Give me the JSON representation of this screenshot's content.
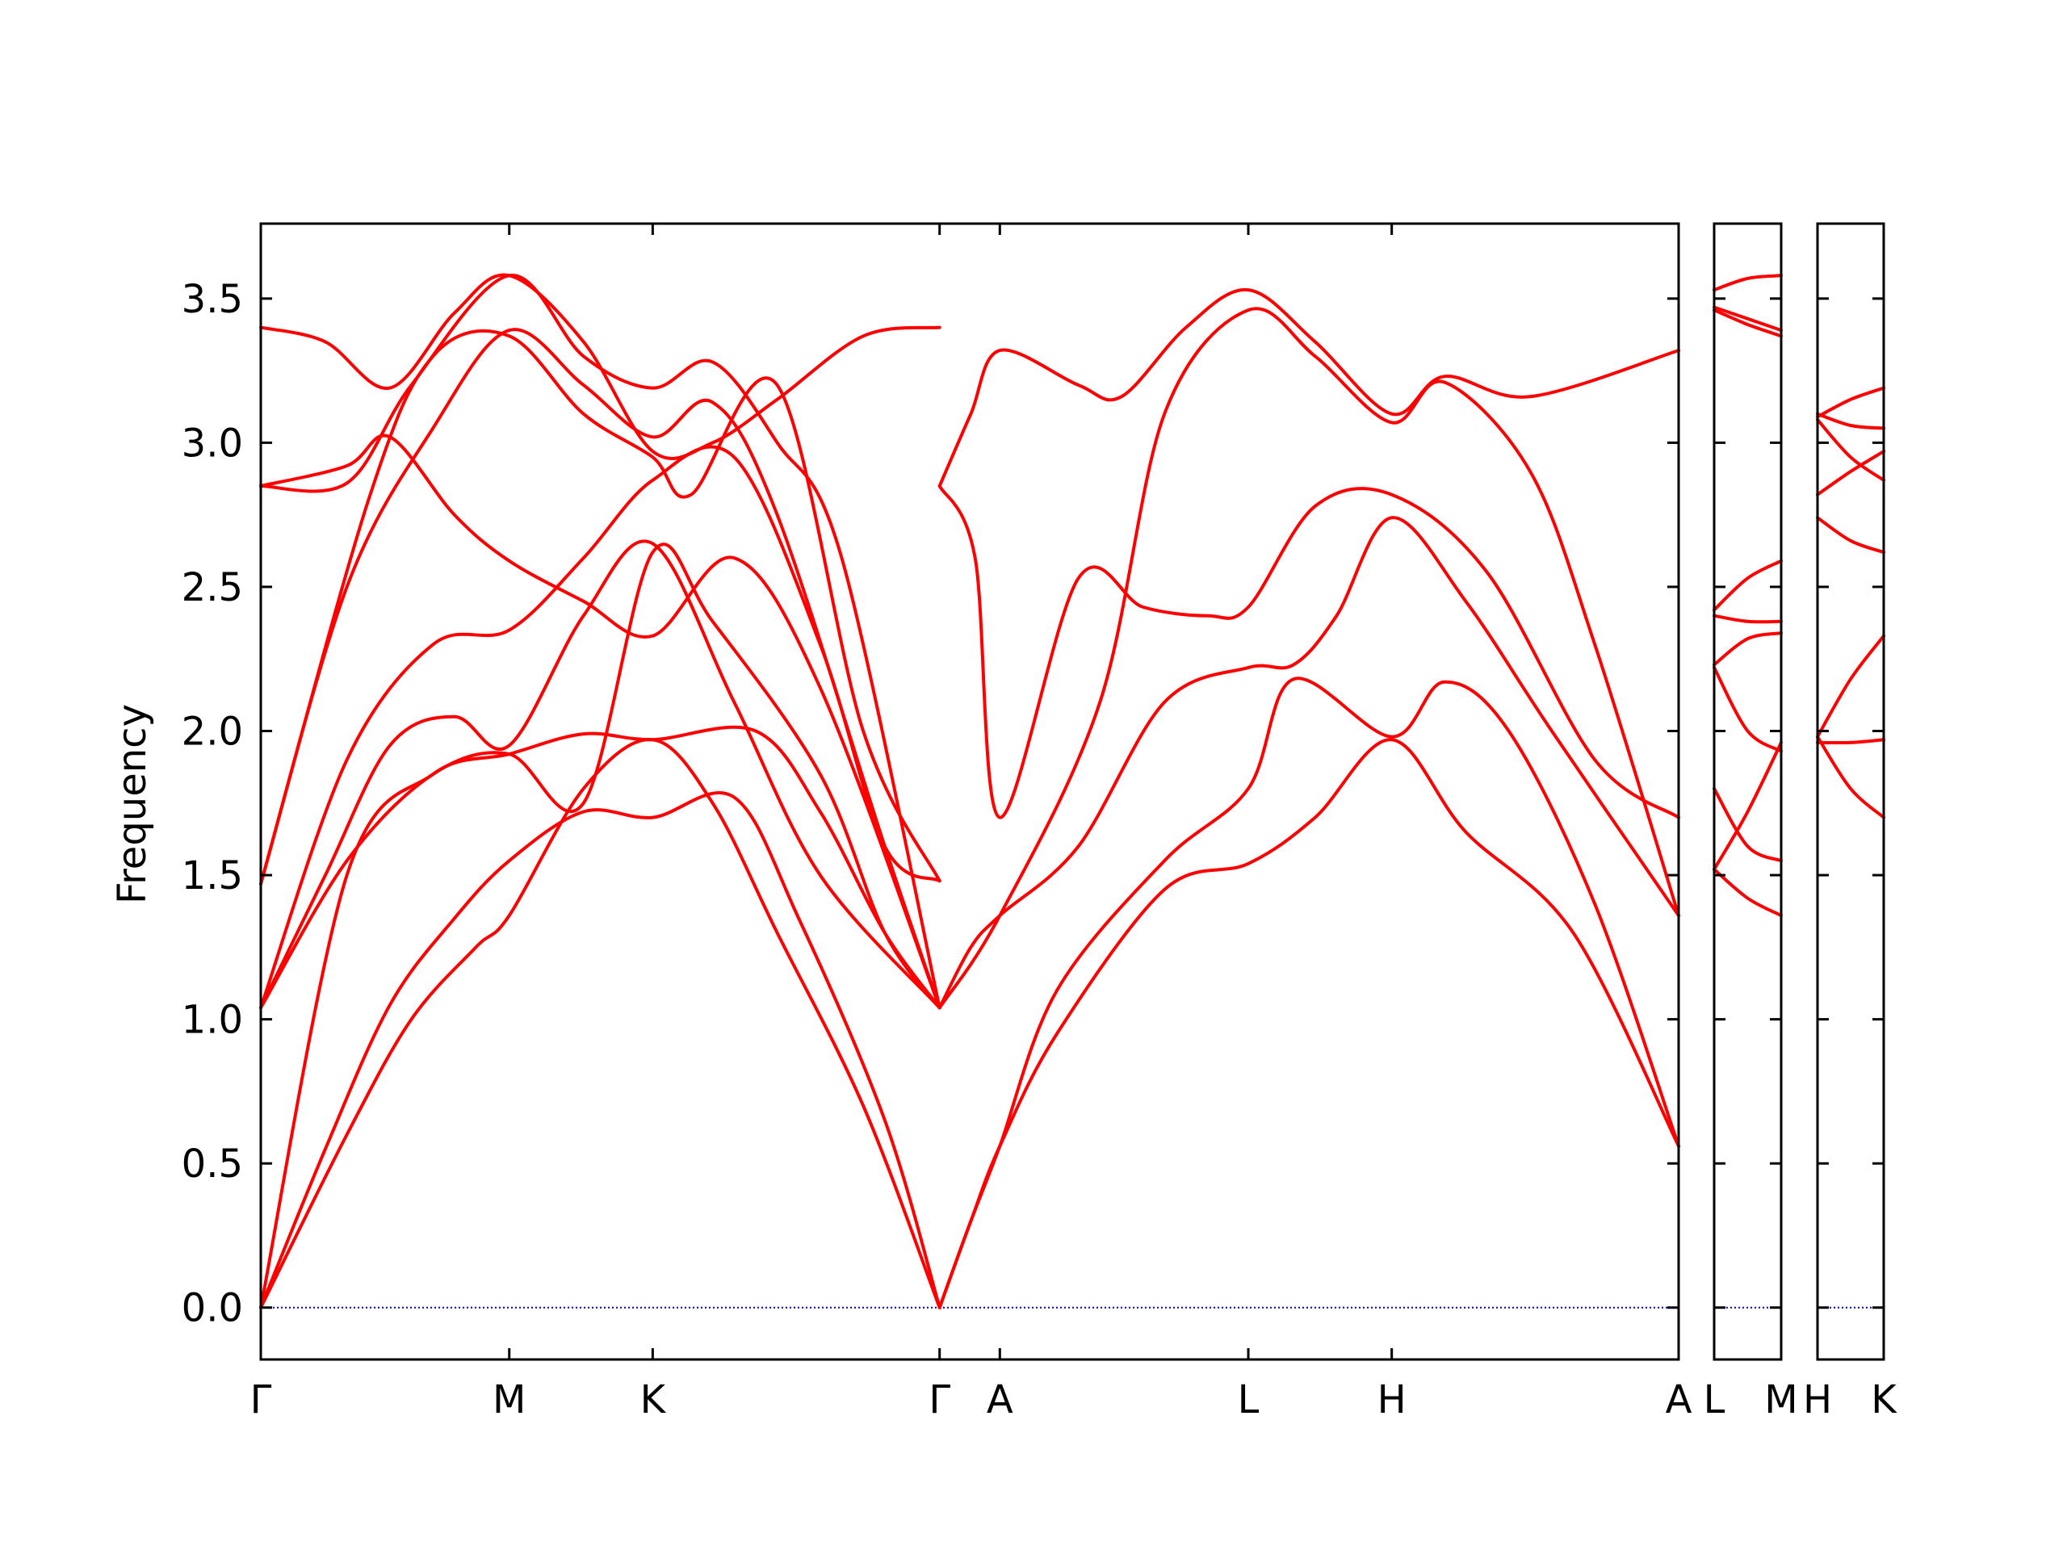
{
  "chart_data": {
    "type": "line",
    "title": "",
    "ylabel": "Frequency",
    "xlabel": "",
    "ylim": [
      -0.18,
      3.76
    ],
    "yticks": [
      0.0,
      0.5,
      1.0,
      1.5,
      2.0,
      2.5,
      3.0,
      3.5
    ],
    "ytick_labels": [
      "0.0",
      "0.5",
      "1.0",
      "1.5",
      "2.0",
      "2.5",
      "3.0",
      "3.5"
    ],
    "grid": false,
    "colors": {
      "band": "#ff0000",
      "zero": "#0000cc",
      "frame": "#000000"
    },
    "panels": [
      {
        "name": "main",
        "labels": [
          "Γ",
          "M",
          "K",
          "Γ",
          "A",
          "L",
          "H",
          "A"
        ],
        "positions": [
          0,
          0.5774,
          0.9107,
          1.5774,
          1.7174,
          2.2948,
          2.6281,
          3.2948
        ],
        "xlim": [
          0,
          3.2948
        ],
        "bands": [
          [
            [
              0,
              0
            ],
            [
              0.2,
              0.6
            ],
            [
              0.35,
              1.0
            ],
            [
              0.5,
              1.25
            ],
            [
              0.5774,
              1.36
            ],
            [
              0.75,
              1.8
            ],
            [
              0.9107,
              1.97
            ],
            [
              1.05,
              1.75
            ],
            [
              1.2,
              1.3
            ],
            [
              1.4,
              0.7
            ],
            [
              1.5774,
              0
            ]
          ],
          [
            [
              0,
              0
            ],
            [
              0.15,
              0.55
            ],
            [
              0.3,
              1.05
            ],
            [
              0.45,
              1.35
            ],
            [
              0.5774,
              1.55
            ],
            [
              0.75,
              1.72
            ],
            [
              0.9107,
              1.7
            ],
            [
              1.1,
              1.77
            ],
            [
              1.25,
              1.35
            ],
            [
              1.45,
              0.65
            ],
            [
              1.5774,
              0
            ]
          ],
          [
            [
              0,
              0
            ],
            [
              0.2,
              1.5
            ],
            [
              0.4,
              1.85
            ],
            [
              0.5774,
              1.92
            ],
            [
              0.75,
              1.99
            ],
            [
              0.9107,
              1.97
            ],
            [
              1.15,
              2.0
            ],
            [
              1.3,
              1.72
            ],
            [
              1.45,
              1.3
            ],
            [
              1.5774,
              1.04
            ]
          ],
          [
            [
              0,
              1.04
            ],
            [
              0.2,
              1.55
            ],
            [
              0.4,
              1.85
            ],
            [
              0.5774,
              1.92
            ],
            [
              0.75,
              1.75
            ],
            [
              0.9107,
              2.62
            ],
            [
              1.05,
              2.38
            ],
            [
              1.3,
              1.85
            ],
            [
              1.45,
              1.3
            ],
            [
              1.5774,
              1.04
            ]
          ],
          [
            [
              0,
              1.04
            ],
            [
              0.15,
              1.5
            ],
            [
              0.3,
              1.95
            ],
            [
              0.45,
              2.05
            ],
            [
              0.5774,
              1.95
            ],
            [
              0.75,
              2.4
            ],
            [
              0.9107,
              2.65
            ],
            [
              1.1,
              2.1
            ],
            [
              1.3,
              1.5
            ],
            [
              1.5774,
              1.04
            ]
          ],
          [
            [
              0,
              1.04
            ],
            [
              0.2,
              1.9
            ],
            [
              0.4,
              2.3
            ],
            [
              0.5774,
              2.35
            ],
            [
              0.75,
              2.6
            ],
            [
              0.9107,
              2.87
            ],
            [
              1.1,
              2.95
            ],
            [
              1.3,
              2.3
            ],
            [
              1.45,
              1.6
            ],
            [
              1.5774,
              1.48
            ]
          ],
          [
            [
              0,
              1.47
            ],
            [
              0.25,
              2.8
            ],
            [
              0.4,
              3.3
            ],
            [
              0.5774,
              3.37
            ],
            [
              0.75,
              3.1
            ],
            [
              0.9107,
              2.95
            ],
            [
              1.0,
              2.82
            ],
            [
              1.2,
              3.2
            ],
            [
              1.4,
              2.0
            ],
            [
              1.5774,
              1.48
            ]
          ],
          [
            [
              0,
              1.47
            ],
            [
              0.2,
              2.5
            ],
            [
              0.4,
              3.05
            ],
            [
              0.5774,
              3.39
            ],
            [
              0.75,
              3.2
            ],
            [
              0.9107,
              3.02
            ],
            [
              1.05,
              3.14
            ],
            [
              1.2,
              2.75
            ],
            [
              1.45,
              1.6
            ],
            [
              1.5774,
              1.04
            ]
          ],
          [
            [
              0,
              2.85
            ],
            [
              0.2,
              2.92
            ],
            [
              0.3,
              3.02
            ],
            [
              0.45,
              2.75
            ],
            [
              0.5774,
              2.59
            ],
            [
              0.75,
              2.45
            ],
            [
              0.9107,
              2.33
            ],
            [
              1.1,
              2.6
            ],
            [
              1.3,
              2.15
            ],
            [
              1.5774,
              1.04
            ]
          ],
          [
            [
              0,
              2.85
            ],
            [
              0.2,
              2.86
            ],
            [
              0.35,
              3.2
            ],
            [
              0.5774,
              3.58
            ],
            [
              0.75,
              3.3
            ],
            [
              0.9107,
              3.19
            ],
            [
              1.05,
              3.28
            ],
            [
              1.2,
              3.0
            ],
            [
              1.35,
              2.6
            ],
            [
              1.5774,
              1.04
            ]
          ],
          [
            [
              0,
              3.4
            ],
            [
              0.15,
              3.35
            ],
            [
              0.3,
              3.19
            ],
            [
              0.45,
              3.45
            ],
            [
              0.5774,
              3.58
            ],
            [
              0.75,
              3.35
            ],
            [
              0.9107,
              2.97
            ],
            [
              1.05,
              3.0
            ],
            [
              1.2,
              3.15
            ],
            [
              1.4,
              3.37
            ],
            [
              1.5774,
              3.4
            ]
          ],
          [
            [
              1.5774,
              2.85
            ],
            [
              1.66,
              2.6
            ],
            [
              1.7174,
              1.7
            ],
            [
              1.9,
              2.53
            ],
            [
              2.05,
              2.43
            ],
            [
              2.2,
              2.4
            ],
            [
              2.2948,
              2.43
            ],
            [
              2.45,
              2.78
            ],
            [
              2.6281,
              2.82
            ],
            [
              2.85,
              2.55
            ],
            [
              3.1,
              1.9
            ],
            [
              3.2948,
              1.7
            ]
          ],
          [
            [
              1.5774,
              1.04
            ],
            [
              1.65,
              1.25
            ],
            [
              1.7174,
              1.36
            ],
            [
              1.9,
              1.6
            ],
            [
              2.1,
              2.1
            ],
            [
              2.2948,
              2.22
            ],
            [
              2.4,
              2.23
            ],
            [
              2.5,
              2.4
            ],
            [
              2.6281,
              2.74
            ],
            [
              2.8,
              2.45
            ],
            [
              3.0,
              2.0
            ],
            [
              3.2948,
              1.36
            ]
          ],
          [
            [
              1.5774,
              0.0
            ],
            [
              1.65,
              0.3
            ],
            [
              1.7174,
              0.56
            ],
            [
              1.85,
              1.1
            ],
            [
              2.1,
              1.55
            ],
            [
              2.2948,
              1.8
            ],
            [
              2.4,
              2.18
            ],
            [
              2.6281,
              1.98
            ],
            [
              2.75,
              2.17
            ],
            [
              2.9,
              2.0
            ],
            [
              3.1,
              1.4
            ],
            [
              3.2948,
              0.56
            ]
          ],
          [
            [
              1.5774,
              0.0
            ],
            [
              1.65,
              0.3
            ],
            [
              1.7174,
              0.56
            ],
            [
              1.85,
              0.95
            ],
            [
              2.1,
              1.45
            ],
            [
              2.2948,
              1.54
            ],
            [
              2.45,
              1.7
            ],
            [
              2.6281,
              1.97
            ],
            [
              2.8,
              1.65
            ],
            [
              3.05,
              1.3
            ],
            [
              3.2948,
              0.56
            ]
          ],
          [
            [
              1.5774,
              2.85
            ],
            [
              1.65,
              3.1
            ],
            [
              1.7174,
              3.32
            ],
            [
              1.9,
              3.2
            ],
            [
              2.0,
              3.16
            ],
            [
              2.15,
              3.4
            ],
            [
              2.2948,
              3.53
            ],
            [
              2.45,
              3.35
            ],
            [
              2.6281,
              3.1
            ],
            [
              2.75,
              3.23
            ],
            [
              2.95,
              3.16
            ],
            [
              3.2948,
              3.32
            ]
          ],
          [
            [
              1.5774,
              1.04
            ],
            [
              1.7174,
              1.36
            ],
            [
              1.95,
              2.1
            ],
            [
              2.1,
              3.1
            ],
            [
              2.2948,
              3.46
            ],
            [
              2.45,
              3.3
            ],
            [
              2.6281,
              3.07
            ],
            [
              2.75,
              3.21
            ],
            [
              2.95,
              2.9
            ],
            [
              3.1,
              2.3
            ],
            [
              3.2948,
              1.36
            ]
          ]
        ]
      },
      {
        "name": "L-M",
        "labels": [
          "L",
          "M"
        ],
        "positions": [
          0,
          0.5
        ],
        "xlim": [
          0,
          0.5
        ],
        "bands": [
          [
            [
              0,
              1.52
            ],
            [
              0.25,
              1.72
            ],
            [
              0.5,
              1.96
            ]
          ],
          [
            [
              0,
              1.52
            ],
            [
              0.25,
              1.42
            ],
            [
              0.5,
              1.36
            ]
          ],
          [
            [
              0,
              1.8
            ],
            [
              0.25,
              1.6
            ],
            [
              0.5,
              1.55
            ]
          ],
          [
            [
              0,
              2.22
            ],
            [
              0.25,
              2.0
            ],
            [
              0.5,
              1.93
            ]
          ],
          [
            [
              0,
              2.23
            ],
            [
              0.25,
              2.32
            ],
            [
              0.5,
              2.34
            ]
          ],
          [
            [
              0,
              2.4
            ],
            [
              0.25,
              2.38
            ],
            [
              0.5,
              2.38
            ]
          ],
          [
            [
              0,
              2.42
            ],
            [
              0.25,
              2.53
            ],
            [
              0.5,
              2.59
            ]
          ],
          [
            [
              0,
              3.46
            ],
            [
              0.25,
              3.41
            ],
            [
              0.5,
              3.37
            ]
          ],
          [
            [
              0,
              3.47
            ],
            [
              0.25,
              3.43
            ],
            [
              0.5,
              3.39
            ]
          ],
          [
            [
              0,
              3.53
            ],
            [
              0.25,
              3.57
            ],
            [
              0.5,
              3.58
            ]
          ]
        ]
      },
      {
        "name": "H-K",
        "labels": [
          "H",
          "K"
        ],
        "positions": [
          0,
          0.5
        ],
        "xlim": [
          0,
          0.5
        ],
        "bands": [
          [
            [
              0,
              1.96
            ],
            [
              0.25,
              1.96
            ],
            [
              0.5,
              1.97
            ]
          ],
          [
            [
              0,
              1.98
            ],
            [
              0.25,
              1.8
            ],
            [
              0.5,
              1.7
            ]
          ],
          [
            [
              0,
              1.98
            ],
            [
              0.25,
              2.18
            ],
            [
              0.5,
              2.33
            ]
          ],
          [
            [
              0,
              2.74
            ],
            [
              0.25,
              2.66
            ],
            [
              0.5,
              2.62
            ]
          ],
          [
            [
              0,
              2.82
            ],
            [
              0.25,
              2.9
            ],
            [
              0.5,
              2.97
            ]
          ],
          [
            [
              0,
              3.08
            ],
            [
              0.25,
              2.95
            ],
            [
              0.5,
              2.87
            ]
          ],
          [
            [
              0,
              3.1
            ],
            [
              0.25,
              3.06
            ],
            [
              0.5,
              3.05
            ]
          ],
          [
            [
              0,
              3.09
            ],
            [
              0.25,
              3.15
            ],
            [
              0.5,
              3.19
            ]
          ]
        ]
      }
    ]
  }
}
